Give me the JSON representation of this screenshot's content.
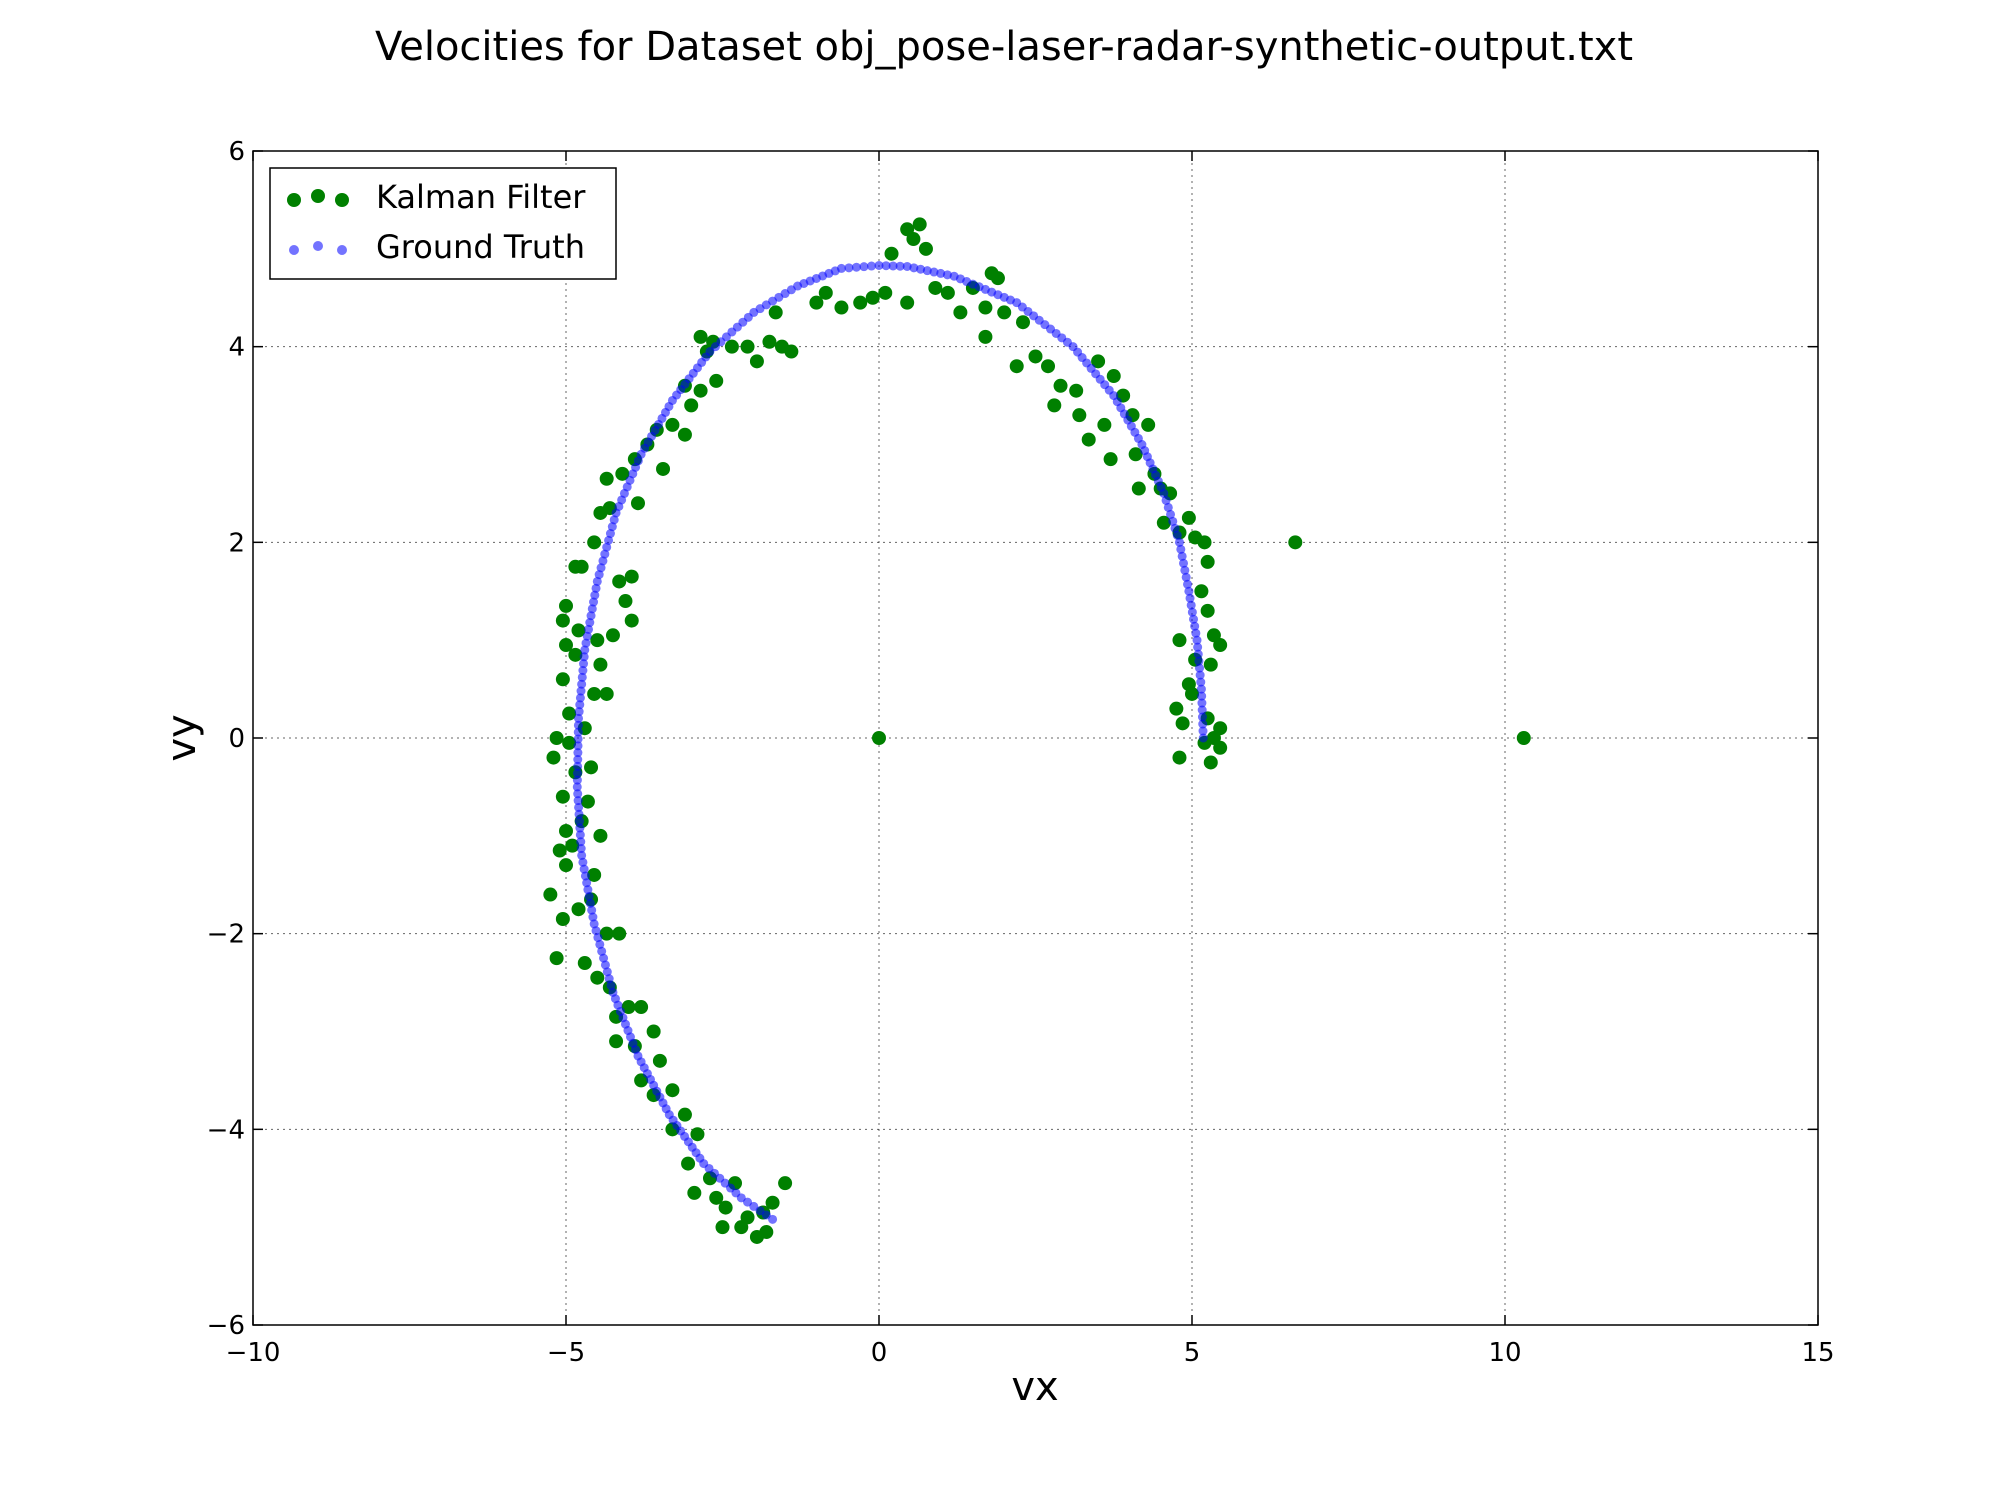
{
  "chart_data": {
    "type": "scatter",
    "title": "Velocities for Dataset obj_pose-laser-radar-synthetic-output.txt",
    "xlabel": "vx",
    "ylabel": "vy",
    "xlim": [
      -10,
      15
    ],
    "ylim": [
      -6,
      6
    ],
    "xticks": [
      -10,
      -5,
      0,
      5,
      10,
      15
    ],
    "yticks": [
      -6,
      -4,
      -2,
      0,
      2,
      4,
      6
    ],
    "xtick_labels": [
      "−10",
      "−5",
      "0",
      "5",
      "10",
      "15"
    ],
    "ytick_labels": [
      "−6",
      "−4",
      "−2",
      "0",
      "2",
      "4",
      "6"
    ],
    "grid": true,
    "legend_position": "top-left",
    "series": [
      {
        "name": "Kalman Filter",
        "color": "#008000",
        "points": [
          [
            0,
            0
          ],
          [
            10.3,
            0
          ],
          [
            6.65,
            2.0
          ],
          [
            -1.8,
            -5.05
          ],
          [
            -2.1,
            -4.9
          ],
          [
            -1.7,
            -4.75
          ],
          [
            -2.3,
            -4.55
          ],
          [
            -1.95,
            -5.1
          ],
          [
            -2.6,
            -4.7
          ],
          [
            -1.5,
            -4.55
          ],
          [
            -2.2,
            -5.0
          ],
          [
            -2.45,
            -4.8
          ],
          [
            -1.85,
            -4.85
          ],
          [
            -2.7,
            -4.5
          ],
          [
            -3.05,
            -4.35
          ],
          [
            -2.95,
            -4.65
          ],
          [
            -2.5,
            -5.0
          ],
          [
            -3.1,
            -3.85
          ],
          [
            -3.3,
            -4.0
          ],
          [
            -2.9,
            -4.05
          ],
          [
            -3.6,
            -3.65
          ],
          [
            -3.3,
            -3.6
          ],
          [
            -3.8,
            -3.5
          ],
          [
            -3.5,
            -3.3
          ],
          [
            -3.9,
            -3.15
          ],
          [
            -4.2,
            -3.1
          ],
          [
            -3.6,
            -3.0
          ],
          [
            -4.2,
            -2.85
          ],
          [
            -4.0,
            -2.75
          ],
          [
            -3.8,
            -2.75
          ],
          [
            -4.3,
            -2.55
          ],
          [
            -4.5,
            -2.45
          ],
          [
            -4.7,
            -2.3
          ],
          [
            -4.35,
            -2.0
          ],
          [
            -4.15,
            -2.0
          ],
          [
            -5.15,
            -2.25
          ],
          [
            -5.05,
            -1.85
          ],
          [
            -5.25,
            -1.6
          ],
          [
            -4.8,
            -1.75
          ],
          [
            -4.6,
            -1.65
          ],
          [
            -4.55,
            -1.4
          ],
          [
            -5.0,
            -1.3
          ],
          [
            -5.1,
            -1.15
          ],
          [
            -4.9,
            -1.1
          ],
          [
            -4.45,
            -1.0
          ],
          [
            -4.75,
            -0.85
          ],
          [
            -5.0,
            -0.95
          ],
          [
            -4.65,
            -0.65
          ],
          [
            -5.05,
            -0.6
          ],
          [
            -4.85,
            -0.35
          ],
          [
            -4.6,
            -0.3
          ],
          [
            -5.2,
            -0.2
          ],
          [
            -4.95,
            -0.05
          ],
          [
            -5.15,
            0.0
          ],
          [
            -4.7,
            0.1
          ],
          [
            -4.95,
            0.25
          ],
          [
            -5.05,
            0.6
          ],
          [
            -4.85,
            0.85
          ],
          [
            -5.0,
            0.95
          ],
          [
            -4.55,
            0.45
          ],
          [
            -4.35,
            0.45
          ],
          [
            -4.45,
            0.75
          ],
          [
            -4.5,
            1.0
          ],
          [
            -4.25,
            1.05
          ],
          [
            -4.8,
            1.1
          ],
          [
            -5.05,
            1.2
          ],
          [
            -5.0,
            1.35
          ],
          [
            -3.95,
            1.2
          ],
          [
            -4.05,
            1.4
          ],
          [
            -3.95,
            1.65
          ],
          [
            -4.15,
            1.6
          ],
          [
            -4.75,
            1.75
          ],
          [
            -4.85,
            1.75
          ],
          [
            -4.55,
            2.0
          ],
          [
            -4.45,
            2.3
          ],
          [
            -4.3,
            2.35
          ],
          [
            -4.1,
            2.7
          ],
          [
            -3.85,
            2.4
          ],
          [
            -4.35,
            2.65
          ],
          [
            -3.9,
            2.85
          ],
          [
            -3.7,
            3.0
          ],
          [
            -3.55,
            3.15
          ],
          [
            -3.3,
            3.2
          ],
          [
            -3.45,
            2.75
          ],
          [
            -3.1,
            3.1
          ],
          [
            -3.0,
            3.4
          ],
          [
            -2.85,
            3.55
          ],
          [
            -3.1,
            3.6
          ],
          [
            -2.6,
            3.65
          ],
          [
            -2.75,
            3.95
          ],
          [
            -2.65,
            4.05
          ],
          [
            -2.85,
            4.1
          ],
          [
            -2.35,
            4.0
          ],
          [
            -2.1,
            4.0
          ],
          [
            -1.95,
            3.85
          ],
          [
            -1.75,
            4.05
          ],
          [
            -1.55,
            4.0
          ],
          [
            -1.4,
            3.95
          ],
          [
            -1.65,
            4.35
          ],
          [
            -1.0,
            4.45
          ],
          [
            -0.85,
            4.55
          ],
          [
            -0.6,
            4.4
          ],
          [
            -0.3,
            4.45
          ],
          [
            -0.1,
            4.5
          ],
          [
            0.1,
            4.55
          ],
          [
            0.2,
            4.95
          ],
          [
            0.45,
            4.45
          ],
          [
            0.45,
            5.2
          ],
          [
            0.55,
            5.1
          ],
          [
            0.65,
            5.25
          ],
          [
            0.75,
            5.0
          ],
          [
            0.9,
            4.6
          ],
          [
            1.1,
            4.55
          ],
          [
            1.3,
            4.35
          ],
          [
            1.5,
            4.6
          ],
          [
            1.7,
            4.4
          ],
          [
            1.8,
            4.75
          ],
          [
            1.9,
            4.7
          ],
          [
            1.7,
            4.1
          ],
          [
            2.0,
            4.35
          ],
          [
            2.2,
            3.8
          ],
          [
            2.3,
            4.25
          ],
          [
            2.5,
            3.9
          ],
          [
            2.7,
            3.8
          ],
          [
            2.9,
            3.6
          ],
          [
            2.8,
            3.4
          ],
          [
            3.15,
            3.55
          ],
          [
            3.2,
            3.3
          ],
          [
            3.35,
            3.05
          ],
          [
            3.5,
            3.85
          ],
          [
            3.6,
            3.2
          ],
          [
            3.75,
            3.7
          ],
          [
            3.9,
            3.5
          ],
          [
            3.7,
            2.85
          ],
          [
            4.05,
            3.3
          ],
          [
            4.1,
            2.9
          ],
          [
            4.3,
            3.2
          ],
          [
            4.15,
            2.55
          ],
          [
            4.4,
            2.7
          ],
          [
            4.5,
            2.55
          ],
          [
            4.55,
            2.2
          ],
          [
            4.65,
            2.5
          ],
          [
            4.8,
            2.1
          ],
          [
            4.95,
            2.25
          ],
          [
            5.05,
            2.05
          ],
          [
            5.2,
            2.0
          ],
          [
            5.25,
            1.8
          ],
          [
            5.15,
            1.5
          ],
          [
            5.25,
            1.3
          ],
          [
            4.8,
            1.0
          ],
          [
            5.05,
            0.8
          ],
          [
            4.95,
            0.55
          ],
          [
            5.3,
            0.75
          ],
          [
            5.45,
            0.95
          ],
          [
            5.35,
            1.05
          ],
          [
            4.75,
            0.3
          ],
          [
            4.85,
            0.15
          ],
          [
            5.0,
            0.45
          ],
          [
            5.35,
            0.0
          ],
          [
            5.45,
            0.1
          ],
          [
            5.25,
            0.2
          ],
          [
            4.8,
            -0.2
          ],
          [
            5.3,
            -0.25
          ],
          [
            5.45,
            -0.1
          ],
          [
            5.2,
            -0.05
          ]
        ]
      },
      {
        "name": "Ground Truth",
        "color": "#0000ff",
        "curve": {
          "center": [
            0.0,
            0.0
          ],
          "points": [
            [
              5.18,
              0.0
            ],
            [
              5.15,
              0.5
            ],
            [
              5.08,
              1.0
            ],
            [
              4.95,
              1.5
            ],
            [
              4.8,
              2.0
            ],
            [
              4.55,
              2.5
            ],
            [
              4.2,
              3.0
            ],
            [
              3.75,
              3.5
            ],
            [
              3.1,
              4.0
            ],
            [
              2.2,
              4.45
            ],
            [
              1.2,
              4.72
            ],
            [
              0.45,
              4.82
            ],
            [
              0.0,
              4.83
            ],
            [
              -0.6,
              4.8
            ],
            [
              -1.3,
              4.62
            ],
            [
              -2.0,
              4.35
            ],
            [
              -2.7,
              3.95
            ],
            [
              -3.3,
              3.45
            ],
            [
              -3.8,
              2.9
            ],
            [
              -4.2,
              2.3
            ],
            [
              -4.5,
              1.6
            ],
            [
              -4.7,
              0.9
            ],
            [
              -4.8,
              0.2
            ],
            [
              -4.82,
              -0.5
            ],
            [
              -4.75,
              -1.2
            ],
            [
              -4.55,
              -1.9
            ],
            [
              -4.25,
              -2.6
            ],
            [
              -3.85,
              -3.25
            ],
            [
              -3.35,
              -3.85
            ],
            [
              -2.8,
              -4.35
            ],
            [
              -2.2,
              -4.7
            ],
            [
              -1.7,
              -4.92
            ]
          ]
        }
      }
    ],
    "legend": [
      {
        "label": "Kalman Filter",
        "color": "#008000"
      },
      {
        "label": "Ground Truth",
        "color": "#0000ff"
      }
    ]
  }
}
